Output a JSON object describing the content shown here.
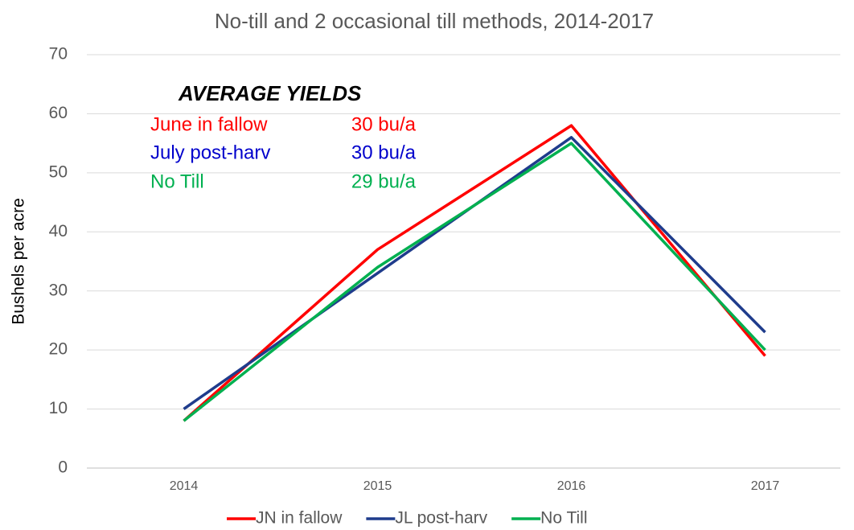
{
  "chart_data": {
    "type": "line",
    "title": "No-till and 2 occasional till methods, 2014-2017",
    "y_label": "Bushels per acre",
    "categories": [
      "2014",
      "2015",
      "2016",
      "2017"
    ],
    "series": [
      {
        "name": "JN in fallow",
        "color": "#ff0000",
        "values": [
          8,
          37,
          58,
          19
        ]
      },
      {
        "name": "JL post-harv",
        "color": "#1f3c8c",
        "values": [
          10,
          33,
          56,
          23
        ]
      },
      {
        "name": "No Till",
        "color": "#00b050",
        "values": [
          8,
          34,
          55,
          20
        ]
      }
    ],
    "ylim": [
      0,
      70
    ],
    "yticks": [
      0,
      10,
      20,
      30,
      40,
      50,
      60,
      70
    ],
    "grid": true,
    "legend": "bottom",
    "annotations": {
      "heading": "AVERAGE YIELDS",
      "rows": [
        {
          "label": "June in fallow",
          "value": "30 bu/a",
          "color": "#ff0000"
        },
        {
          "label": "July post-harv",
          "value": "30 bu/a",
          "color": "#0000cc"
        },
        {
          "label": "No Till",
          "value": "29 bu/a",
          "color": "#00b050"
        }
      ]
    }
  }
}
